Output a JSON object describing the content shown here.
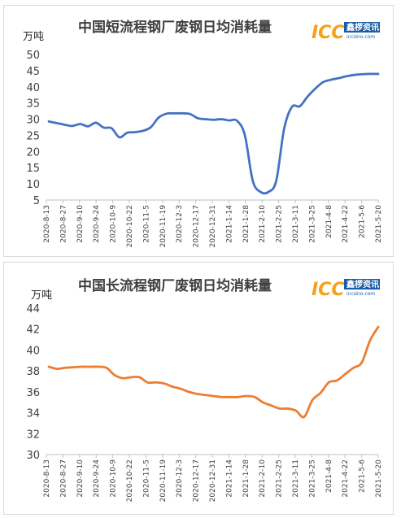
{
  "logo": {
    "mark": "ICC",
    "cn": "鑫椤资讯",
    "url": "iccsino.com",
    "mark_color": "#f5a21b",
    "band_color": "#1a5da5"
  },
  "chart_data": [
    {
      "type": "line",
      "title": "中国短流程钢厂废钢日均消耗量",
      "unit": "万吨",
      "color": "#4472c4",
      "ylim": [
        5,
        50
      ],
      "yticks": [
        5,
        10,
        15,
        20,
        25,
        30,
        35,
        40,
        45,
        50
      ],
      "xticks": [
        "2020-8-13",
        "2020-8-27",
        "2020-9-10",
        "2020-9-24",
        "2020-10-9",
        "2020-10-22",
        "2020-11-5",
        "2020-11-19",
        "2020-12-3",
        "2020-12-17",
        "2020-12-31",
        "2021-1-14",
        "2021-1-28",
        "2021-2-10",
        "2021-2-25",
        "2021-3-11",
        "2021-3-25",
        "2021-4-8",
        "2021-4-22",
        "2021-5-6",
        "2021-5-20"
      ],
      "series": [
        {
          "values": [
            29.3,
            28.8,
            28.3,
            27.9,
            28.5,
            27.8,
            28.9,
            27.4,
            27.2,
            24.4,
            25.8,
            26.0,
            26.4,
            27.5,
            30.5,
            31.7,
            31.8,
            31.8,
            31.6,
            30.3,
            30.0,
            29.8,
            30.0,
            29.6,
            29.5,
            25.0,
            11.0,
            7.5,
            7.5,
            11.0,
            27.0,
            33.8,
            34.0,
            37.0,
            39.5,
            41.5,
            42.2,
            42.7,
            43.3,
            43.7,
            43.9,
            44.0,
            44.0
          ]
        }
      ]
    },
    {
      "type": "line",
      "title": "中国长流程钢厂废钢日均消耗量",
      "unit": "万吨",
      "color": "#ed7d31",
      "ylim": [
        30,
        44
      ],
      "yticks": [
        30,
        32,
        34,
        36,
        38,
        40,
        42,
        44
      ],
      "xticks": [
        "2020-8-13",
        "2020-8-27",
        "2020-9-10",
        "2020-9-24",
        "2020-10-9",
        "2020-10-22",
        "2020-11-5",
        "2020-11-19",
        "2020-12-3",
        "2020-12-17",
        "2020-12-31",
        "2021-1-14",
        "2021-1-28",
        "2021-2-10",
        "2021-2-25",
        "2021-3-11",
        "2021-3-25",
        "2021-4-8",
        "2021-4-22",
        "2021-5-6",
        "2021-5-20"
      ],
      "series": [
        {
          "values": [
            38.4,
            38.2,
            38.3,
            38.35,
            38.4,
            38.4,
            38.4,
            38.3,
            37.6,
            37.3,
            37.4,
            37.4,
            36.9,
            36.9,
            36.8,
            36.5,
            36.3,
            36.0,
            35.8,
            35.7,
            35.6,
            35.5,
            35.5,
            35.5,
            35.6,
            35.5,
            35.0,
            34.7,
            34.4,
            34.4,
            34.2,
            33.6,
            35.2,
            35.9,
            36.9,
            37.1,
            37.7,
            38.3,
            38.8,
            40.9,
            42.2
          ]
        }
      ]
    }
  ]
}
